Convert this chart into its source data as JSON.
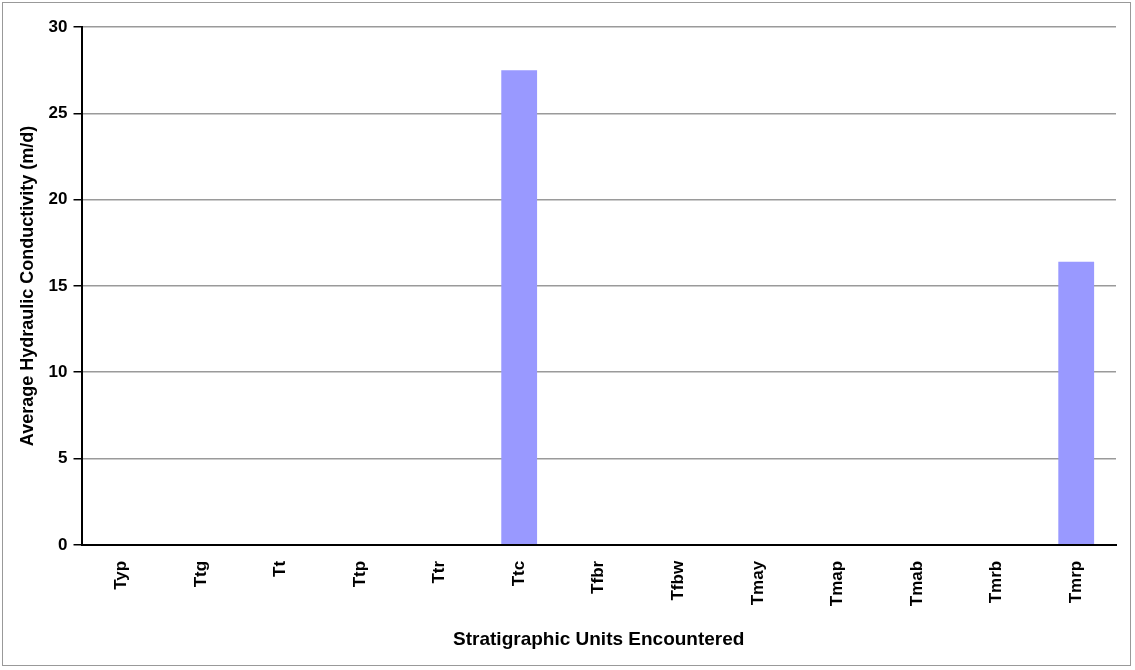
{
  "chart_data": {
    "type": "bar",
    "xlabel": "Stratigraphic Units Encountered",
    "ylabel": "Average Hydraulic Conductivity (m/d)",
    "categories": [
      "Typ",
      "Ttg",
      "Tt",
      "Ttp",
      "Ttr",
      "Ttc",
      "Tfbr",
      "Tfbw",
      "Tmay",
      "Tmap",
      "Tmab",
      "Tmrb",
      "Tmrp"
    ],
    "values": [
      null,
      null,
      null,
      null,
      null,
      27.5,
      null,
      null,
      null,
      null,
      null,
      null,
      16.4
    ],
    "color": "#9999ff",
    "ylim": [
      0,
      30
    ],
    "yticks": [
      0,
      5,
      10,
      15,
      20,
      25,
      30
    ],
    "grid": "y",
    "legend": false
  }
}
